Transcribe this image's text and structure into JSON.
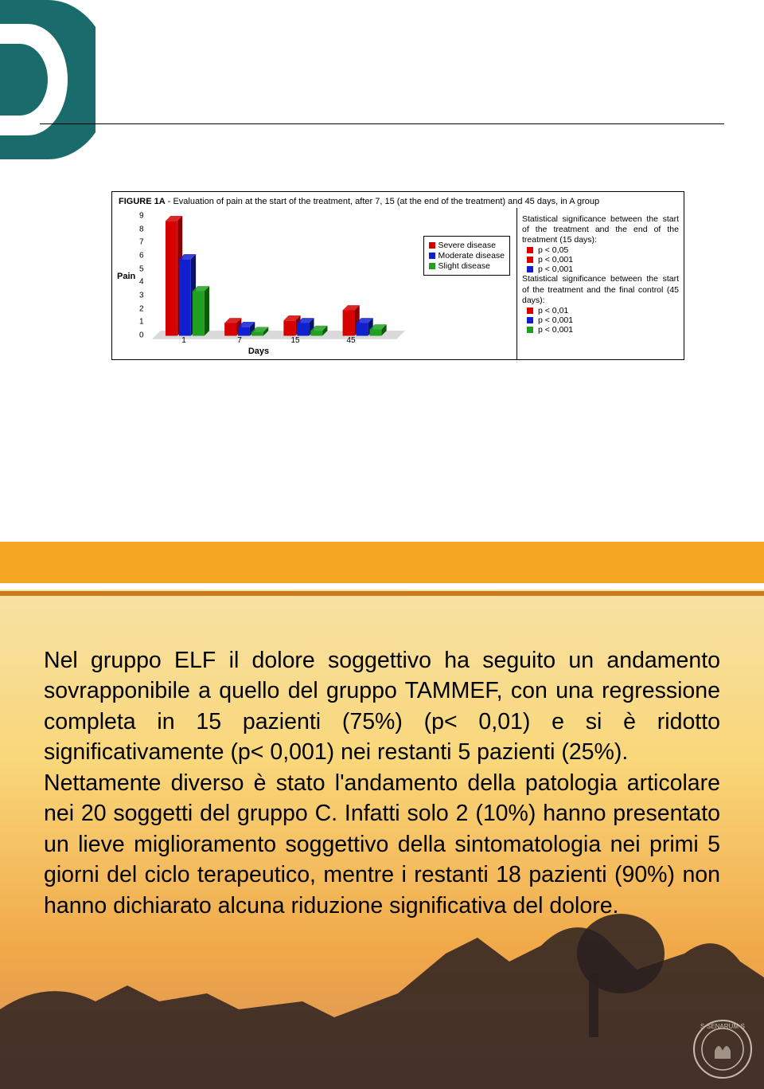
{
  "slide1": {
    "figure_title_bold": "FIGURE 1A",
    "figure_title_rest": " - Evaluation of pain at the start of the treatment, after 7, 15 (at the end of the treatment) and 45 days, in A group",
    "chart": {
      "type": "bar-3d",
      "ylabel": "Pain",
      "xlabel": "Days",
      "ylim": [
        0,
        9
      ],
      "yticks": [
        0,
        1,
        2,
        3,
        4,
        5,
        6,
        7,
        8,
        9
      ],
      "categories": [
        "1",
        "7",
        "15",
        "45"
      ],
      "series": [
        {
          "name": "Severe disease",
          "color": "#d60000",
          "shadow": "#8a0000",
          "values": [
            9.0,
            1.0,
            1.2,
            2.0
          ]
        },
        {
          "name": "Moderate disease",
          "color": "#1020d0",
          "shadow": "#081070",
          "values": [
            6.0,
            0.7,
            1.0,
            1.0
          ]
        },
        {
          "name": "Slight disease",
          "color": "#1fa01f",
          "shadow": "#0d5a0d",
          "values": [
            3.5,
            0.3,
            0.4,
            0.5
          ]
        }
      ],
      "floor_color": "#d9d9d9",
      "background_color": "#ffffff"
    },
    "legend": {
      "items": [
        {
          "label": "Severe disease",
          "color": "#d60000"
        },
        {
          "label": "Moderate disease",
          "color": "#1020d0"
        },
        {
          "label": "Slight disease",
          "color": "#1fa01f"
        }
      ]
    },
    "stats": {
      "block1_header": "Statistical significance between the start of the treatment and the end of the treatment (15 days):",
      "block1_items": [
        {
          "color": "#d60000",
          "text": "p < 0,05"
        },
        {
          "color": "#d60000",
          "text": "p < 0,001"
        },
        {
          "color": "#1020d0",
          "text": "p < 0,001"
        }
      ],
      "block2_header": "Statistical significance between the start of the treatment and the final control (45 days):",
      "block2_items": [
        {
          "color": "#d60000",
          "text": "p < 0,01"
        },
        {
          "color": "#1020d0",
          "text": "p < 0,001"
        },
        {
          "color": "#1fa01f",
          "text": "p < 0,001"
        }
      ]
    }
  },
  "slide2": {
    "paragraph": "Nel gruppo ELF il dolore soggettivo ha seguito un andamento sovrapponibile a quello del gruppo TAMMEF, con una regressione completa in 15 pazienti (75%) (p< 0,01) e si è ridotto significativamente (p< 0,001) nei restanti 5 pazienti (25%).\nNettamente diverso è stato l'andamento della patologia articolare nei 20 soggetti del gruppo C. Infatti solo 2 (10%) hanno presentato un lieve miglioramento soggettivo della sintomatologia nei primi 5 giorni del ciclo terapeutico, mentre i restanti 18 pazienti (90%) non hanno dichiarato alcuna riduzione significativa del dolore.",
    "band_color": "#f5a623",
    "seal_text": "S·SENARUM·S"
  }
}
